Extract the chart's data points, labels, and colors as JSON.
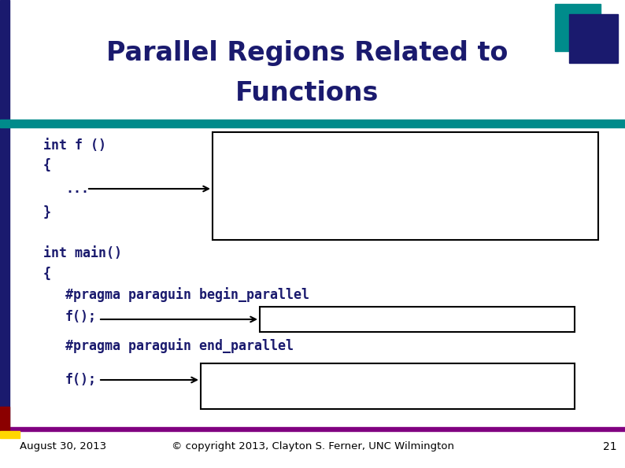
{
  "title_line1": "Parallel Regions Related to",
  "title_line2": "Functions",
  "title_color": "#1a1a6e",
  "bg_color": "#ffffff",
  "left_bar_color": "#1a1a6e",
  "teal_bar_color": "#008b8b",
  "footer_line_color": "#800080",
  "footer_text": "© copyright 2013, Clayton S. Ferner, UNC Wilmington",
  "footer_date": "August 30, 2013",
  "footer_page": "21",
  "navy_header_color": "#1a1a6e",
  "code_color": "#1a1a6e",
  "arrow_color": "#000000",
  "dark_red_color": "#8b0000",
  "yellow_color": "#ffd700"
}
